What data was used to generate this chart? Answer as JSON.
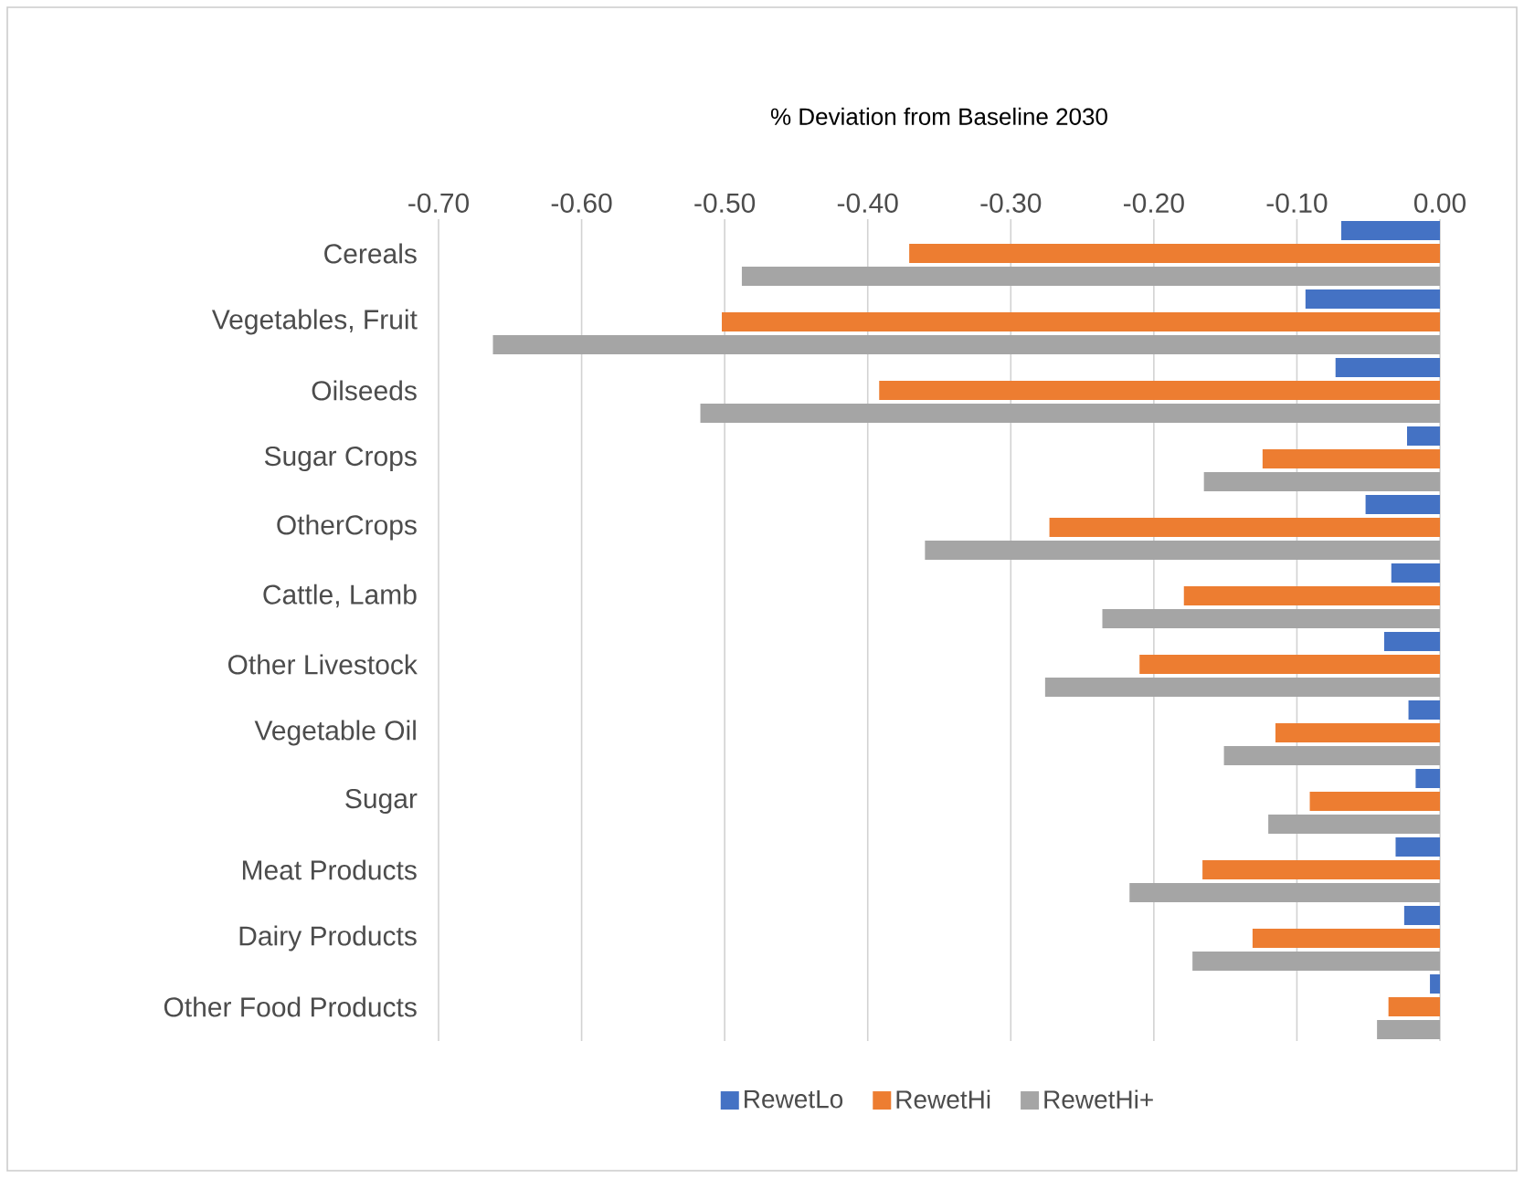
{
  "chart_data": {
    "type": "bar",
    "orientation": "horizontal",
    "title": "% Deviation from Baseline 2030",
    "categories": [
      "Cereals",
      "Vegetables, Fruit",
      "Oilseeds",
      "Sugar Crops",
      "OtherCrops",
      "Cattle, Lamb",
      "Other Livestock",
      "Vegetable Oil",
      "Sugar",
      "Meat Products",
      "Dairy Products",
      "Other Food Products"
    ],
    "series": [
      {
        "name": "RewetLo",
        "color": "#4472c4",
        "values": [
          -0.069,
          -0.094,
          -0.073,
          -0.023,
          -0.052,
          -0.034,
          -0.039,
          -0.022,
          -0.017,
          -0.031,
          -0.025,
          -0.007
        ]
      },
      {
        "name": "RewetHi",
        "color": "#ed7d31",
        "values": [
          -0.371,
          -0.502,
          -0.392,
          -0.124,
          -0.273,
          -0.179,
          -0.21,
          -0.115,
          -0.091,
          -0.166,
          -0.131,
          -0.036
        ]
      },
      {
        "name": "RewetHi+",
        "color": "#a5a5a5",
        "values": [
          -0.488,
          -0.662,
          -0.517,
          -0.165,
          -0.36,
          -0.236,
          -0.276,
          -0.151,
          -0.12,
          -0.217,
          -0.173,
          -0.044
        ]
      }
    ],
    "xlim": [
      -0.7,
      0
    ],
    "xticks": [
      {
        "value": -0.7,
        "label": "-0.70"
      },
      {
        "value": -0.6,
        "label": "-0.60"
      },
      {
        "value": -0.5,
        "label": "-0.50"
      },
      {
        "value": -0.4,
        "label": "-0.40"
      },
      {
        "value": -0.3,
        "label": "-0.30"
      },
      {
        "value": -0.2,
        "label": "-0.20"
      },
      {
        "value": -0.1,
        "label": "-0.10"
      },
      {
        "value": 0,
        "label": "0.00"
      }
    ],
    "grid": "x",
    "legend": "bottom"
  }
}
